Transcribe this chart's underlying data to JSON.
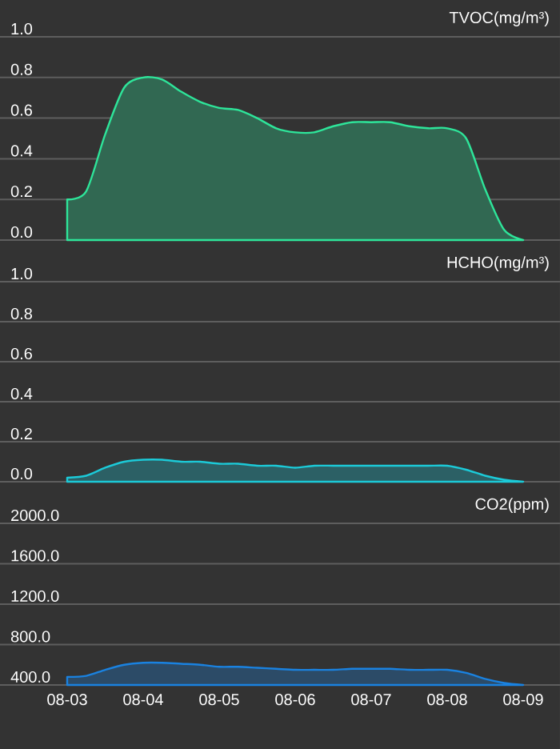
{
  "chart_data": [
    {
      "type": "area",
      "title": "TVOC(mg/m³)",
      "color": "#2ee59a",
      "categories": [
        null,
        null,
        null,
        null,
        null,
        null,
        null,
        null,
        null,
        null,
        null,
        null,
        null,
        null,
        null,
        null,
        null,
        null,
        null,
        null,
        null,
        null,
        null,
        null,
        null
      ],
      "values": [
        0.2,
        0.24,
        0.52,
        0.75,
        0.8,
        0.79,
        0.73,
        0.68,
        0.65,
        0.64,
        0.6,
        0.55,
        0.53,
        0.53,
        0.56,
        0.58,
        0.58,
        0.58,
        0.56,
        0.55,
        0.55,
        0.5,
        0.25,
        0.05,
        0.0
      ],
      "ylim": [
        0,
        1
      ],
      "yticks": [
        {
          "value": 0,
          "label": "0.0"
        },
        0.2,
        0.4,
        0.6,
        0.8,
        {
          "value": 1,
          "label": "1.0"
        }
      ],
      "grid": "y",
      "tick_labels": "y"
    },
    {
      "type": "area",
      "title": "HCHO(mg/m³)",
      "color": "#1ccad8",
      "categories": [
        null,
        null,
        null,
        null,
        null,
        null,
        null,
        null,
        null,
        null,
        null,
        null,
        null,
        null,
        null,
        null,
        null,
        null,
        null,
        null,
        null,
        null,
        null,
        null,
        null
      ],
      "values": [
        0.02,
        0.03,
        0.07,
        0.1,
        0.11,
        0.11,
        0.1,
        0.1,
        0.09,
        0.09,
        0.08,
        0.08,
        0.07,
        0.08,
        0.08,
        0.08,
        0.08,
        0.08,
        0.08,
        0.08,
        0.08,
        0.06,
        0.03,
        0.01,
        0.0
      ],
      "ylim": [
        0,
        1
      ],
      "yticks": [
        {
          "value": 0,
          "label": "0.0"
        },
        0.2,
        0.4,
        0.6,
        0.8,
        {
          "value": 1,
          "label": "1.0"
        }
      ],
      "grid": "y",
      "tick_labels": "y"
    },
    {
      "type": "area",
      "title": "CO2(ppm)",
      "color": "#1a82e0",
      "categories": [
        "08-03",
        null,
        null,
        null,
        "08-04",
        null,
        null,
        null,
        "08-05",
        null,
        null,
        null,
        "08-06",
        null,
        null,
        null,
        "08-07",
        null,
        null,
        null,
        "08-08",
        null,
        null,
        null,
        "08-09"
      ],
      "values": [
        480,
        490,
        550,
        600,
        620,
        620,
        610,
        600,
        580,
        580,
        570,
        560,
        550,
        550,
        550,
        560,
        560,
        560,
        550,
        550,
        550,
        520,
        460,
        420,
        400
      ],
      "ylim": [
        400,
        2000
      ],
      "yticks": [
        {
          "value": 400,
          "label": "400.0"
        },
        {
          "value": 800,
          "label": "800.0"
        },
        {
          "value": 1200,
          "label": "1200.0"
        },
        {
          "value": 1600,
          "label": "1600.0"
        },
        {
          "value": 2000,
          "label": "2000.0"
        }
      ],
      "grid": "y"
    }
  ]
}
